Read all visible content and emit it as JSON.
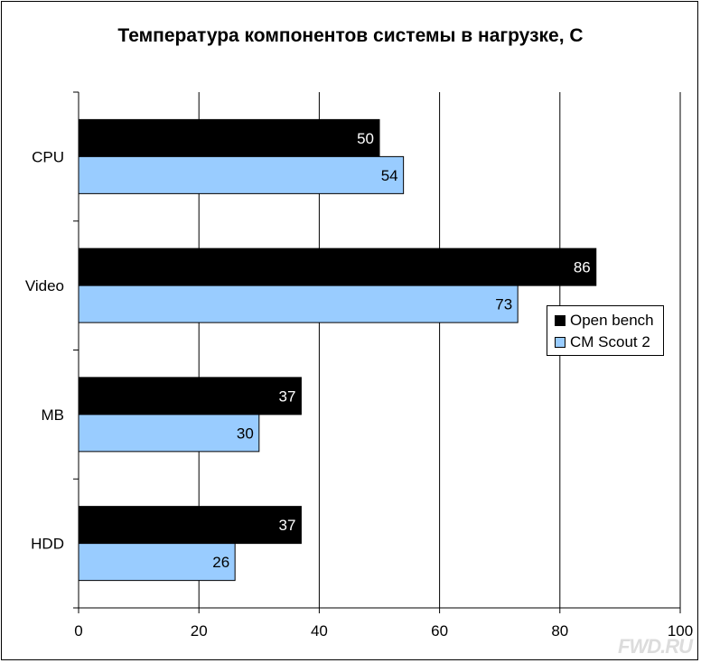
{
  "chart_data": {
    "type": "bar",
    "orientation": "horizontal",
    "title": "Температура компонентов системы в нагрузке, С",
    "categories": [
      "CPU",
      "Video",
      "MB",
      "HDD"
    ],
    "series": [
      {
        "name": "Open bench",
        "values": [
          50,
          86,
          37,
          37
        ],
        "color": "#000000",
        "label_color": "#ffffff"
      },
      {
        "name": "CM Scout 2",
        "values": [
          54,
          73,
          30,
          26
        ],
        "color": "#99ccff",
        "label_color": "#000000"
      }
    ],
    "xlim": [
      0,
      100
    ],
    "xticks": [
      0,
      20,
      40,
      60,
      80,
      100
    ],
    "grid": "vertical",
    "legend_position": "right"
  },
  "watermark": "FWD.RU"
}
